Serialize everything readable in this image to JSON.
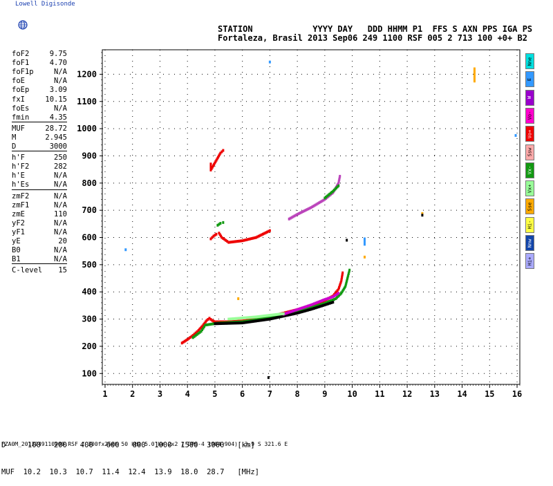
{
  "header": {
    "logo_text": "Lowell Digisonde",
    "line1": "STATION            YYYY DAY   DDD HHMM P1  FFS S AXN PPS IGA PS",
    "line2": "Fortaleza, Brasil 2013 Sep06 249 1100 RSF 005 2 713 100 +0+ B2"
  },
  "params": [
    {
      "label": "foF2",
      "value": "9.75"
    },
    {
      "label": "foF1",
      "value": "4.70"
    },
    {
      "label": "foF1p",
      "value": "N/A"
    },
    {
      "label": "foE",
      "value": "N/A"
    },
    {
      "label": "foEp",
      "value": "3.09"
    },
    {
      "label": "fxI",
      "value": "10.15"
    },
    {
      "label": "foEs",
      "value": "N/A"
    },
    {
      "label": "fmin",
      "value": "4.35"
    },
    {
      "label": "MUF",
      "value": "28.72"
    },
    {
      "label": "M",
      "value": "2.945"
    },
    {
      "label": "D",
      "value": "3000"
    },
    {
      "label": "h'F",
      "value": "250"
    },
    {
      "label": "h'F2",
      "value": "282"
    },
    {
      "label": "h'E",
      "value": "N/A"
    },
    {
      "label": "h'Es",
      "value": "N/A"
    },
    {
      "label": "zmF2",
      "value": "N/A"
    },
    {
      "label": "zmF1",
      "value": "N/A"
    },
    {
      "label": "zmE",
      "value": "110"
    },
    {
      "label": "yF2",
      "value": "N/A"
    },
    {
      "label": "yF1",
      "value": "N/A"
    },
    {
      "label": "yE",
      "value": "20"
    },
    {
      "label": "B0",
      "value": "N/A"
    },
    {
      "label": "B1",
      "value": "N/A"
    },
    {
      "label": "C-level",
      "value": "15"
    }
  ],
  "tags": [
    {
      "label": "Nne",
      "color": "#00e0e0"
    },
    {
      "label": "E",
      "color": "#3399ff"
    },
    {
      "label": "W",
      "color": "#9900cc"
    },
    {
      "label": "Vo-",
      "color": "#ff00cc"
    },
    {
      "label": "Vo+",
      "color": "#ee0000"
    },
    {
      "label": "Ssw",
      "color": "#ffaaaa"
    },
    {
      "label": "Vx-",
      "color": "#119911"
    },
    {
      "label": "Vx+",
      "color": "#99ff99"
    },
    {
      "label": "Sse",
      "color": "#ffaa00"
    },
    {
      "label": "Hi-",
      "color": "#ffff44"
    },
    {
      "label": "Nnw",
      "color": "#1144aa"
    },
    {
      "label": "Hi+",
      "color": "#aaaaff"
    }
  ],
  "bottom": {
    "d_line": "D     100   200   400   600   800  1000  1500  3000   [km]",
    "muf_line": "MUF  10.2  10.3  10.7  11.4  12.4  13.9  18.0  28.7   [MHz]",
    "footer": "FZA0M_2013249110000.RSF / 300fx256h 50 kHz 5.0 km 2x2 / DPS-4 (904-904)  3.9 S 321.6 E"
  },
  "chart_data": {
    "type": "scatter",
    "xlim": [
      0.9,
      16.1
    ],
    "ylim": [
      60,
      1290
    ],
    "x_ticks": [
      1,
      2,
      3,
      4,
      5,
      6,
      7,
      8,
      9,
      10,
      11,
      12,
      13,
      14,
      15,
      16
    ],
    "y_ticks": [
      100,
      200,
      300,
      400,
      500,
      600,
      700,
      800,
      900,
      1000,
      1100,
      1200
    ],
    "grid": true,
    "traces": [
      {
        "color": "#ee0000",
        "points": [
          [
            3.8,
            212
          ],
          [
            4.0,
            225
          ],
          [
            4.2,
            240
          ],
          [
            4.4,
            258
          ],
          [
            4.55,
            275
          ],
          [
            4.7,
            295
          ],
          [
            4.8,
            303
          ],
          [
            4.9,
            295
          ],
          [
            5.0,
            290
          ],
          [
            5.5,
            290
          ],
          [
            6.0,
            293
          ],
          [
            6.5,
            300
          ],
          [
            7.0,
            310
          ],
          [
            7.5,
            322
          ],
          [
            8.0,
            335
          ],
          [
            8.5,
            350
          ],
          [
            9.0,
            368
          ],
          [
            9.3,
            385
          ],
          [
            9.5,
            410
          ],
          [
            9.6,
            440
          ],
          [
            9.65,
            470
          ]
        ]
      },
      {
        "color": "#119911",
        "points": [
          [
            4.2,
            232
          ],
          [
            4.5,
            255
          ],
          [
            4.65,
            278
          ],
          [
            5.1,
            285
          ],
          [
            6.0,
            290
          ],
          [
            7.0,
            305
          ],
          [
            8.0,
            328
          ],
          [
            8.5,
            342
          ],
          [
            9.0,
            358
          ],
          [
            9.4,
            375
          ],
          [
            9.6,
            395
          ],
          [
            9.75,
            420
          ],
          [
            9.85,
            460
          ],
          [
            9.9,
            480
          ]
        ]
      },
      {
        "color": "#000000",
        "points": [
          [
            5.0,
            283
          ],
          [
            6.0,
            286
          ],
          [
            7.0,
            300
          ],
          [
            8.0,
            322
          ],
          [
            8.5,
            336
          ],
          [
            9.0,
            352
          ],
          [
            9.3,
            362
          ]
        ]
      },
      {
        "color": "#cc00cc",
        "points": [
          [
            7.5,
            318
          ],
          [
            8.0,
            335
          ],
          [
            8.5,
            352
          ],
          [
            9.0,
            372
          ],
          [
            9.3,
            382
          ],
          [
            9.5,
            395
          ]
        ]
      },
      {
        "color": "#99ff99",
        "points": [
          [
            5.5,
            300
          ],
          [
            6.5,
            308
          ],
          [
            7.5,
            320
          ]
        ]
      },
      {
        "color": "#ee0000",
        "points": [
          [
            4.85,
            595
          ],
          [
            4.95,
            605
          ],
          [
            5.05,
            612
          ],
          [
            5.15,
            616
          ],
          [
            5.25,
            600
          ],
          [
            5.5,
            582
          ],
          [
            6.0,
            588
          ],
          [
            6.5,
            600
          ],
          [
            7.0,
            625
          ]
        ]
      },
      {
        "color": "#119911",
        "points": [
          [
            5.1,
            645
          ],
          [
            5.2,
            652
          ],
          [
            5.3,
            655
          ]
        ]
      },
      {
        "color": "#bb44bb",
        "points": [
          [
            7.7,
            668
          ],
          [
            8.0,
            685
          ],
          [
            8.5,
            710
          ],
          [
            9.0,
            740
          ],
          [
            9.3,
            765
          ],
          [
            9.5,
            800
          ],
          [
            9.55,
            825
          ]
        ]
      },
      {
        "color": "#119911",
        "points": [
          [
            9.0,
            745
          ],
          [
            9.3,
            770
          ],
          [
            9.5,
            790
          ]
        ]
      },
      {
        "color": "#ee0000",
        "points": [
          [
            4.85,
            870
          ],
          [
            4.85,
            848
          ],
          [
            5.2,
            910
          ],
          [
            5.3,
            920
          ]
        ]
      },
      {
        "color": "#3399ff",
        "points": [
          [
            1.75,
            555
          ],
          [
            7.0,
            1245
          ],
          [
            15.95,
            975
          ],
          [
            10.45,
            595
          ],
          [
            10.45,
            575
          ]
        ]
      },
      {
        "color": "#ffaa00",
        "points": [
          [
            14.45,
            1220
          ],
          [
            14.45,
            1205
          ],
          [
            14.45,
            1175
          ],
          [
            10.45,
            528
          ],
          [
            5.85,
            375
          ],
          [
            12.55,
            688
          ]
        ]
      },
      {
        "color": "#000000",
        "points": [
          [
            12.55,
            682
          ],
          [
            9.8,
            590
          ],
          [
            6.95,
            85
          ]
        ]
      }
    ]
  }
}
